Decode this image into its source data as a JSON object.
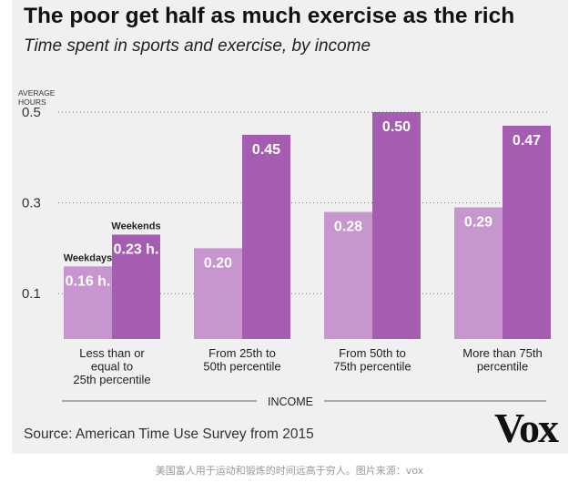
{
  "title": "The poor get half as much exercise as the rich",
  "subtitle": "Time spent in sports and exercise, by income",
  "source": "Source: American Time Use Survey from 2015",
  "logo": "Vox",
  "caption": "美国富人用于运动和锻炼的时间远高于穷人。图片来源：vox",
  "colors": {
    "weekdays": "#c896cf",
    "weekends": "#a55db2",
    "gridline": "#777777",
    "text": "#222222"
  },
  "chart_data": {
    "type": "bar",
    "title": "The poor get half as much exercise as the rich",
    "subtitle": "Time spent in sports and exercise, by income",
    "ylabel_lines": [
      "AVERAGE",
      "HOURS"
    ],
    "xlabel": "INCOME",
    "ylim": [
      0,
      0.5
    ],
    "yticks": [
      0.1,
      0.3,
      0.5
    ],
    "ytick_labels": [
      "0.1",
      "0.3",
      "0.5"
    ],
    "grid": "dotted horizontal",
    "categories": [
      [
        "Less than or",
        "equal to",
        "25th percentile"
      ],
      [
        "From 25th to",
        "50th percentile"
      ],
      [
        "From 50th to",
        "75th percentile"
      ],
      [
        "More than 75th",
        "percentile"
      ]
    ],
    "series": [
      {
        "name": "Weekdays",
        "values": [
          0.16,
          0.2,
          0.28,
          0.29
        ],
        "labels": [
          "0.16 h.",
          "0.20",
          "0.28",
          "0.29"
        ]
      },
      {
        "name": "Weekends",
        "values": [
          0.23,
          0.45,
          0.5,
          0.47
        ],
        "labels": [
          "0.23 h.",
          "0.45",
          "0.50",
          "0.47"
        ]
      }
    ]
  }
}
